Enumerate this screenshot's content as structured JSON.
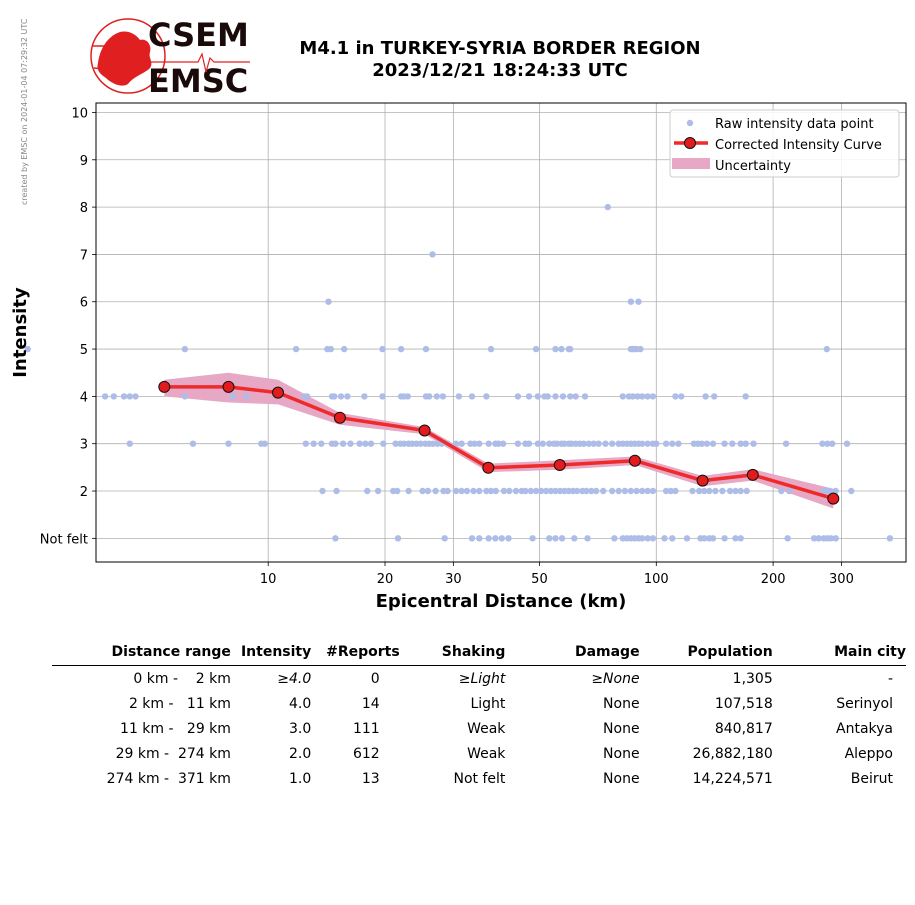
{
  "side_note": "created by EMSC on 2024-01-04 07:29:32 UTC",
  "logo": {
    "line1": "CSEM",
    "line2": "EMSC"
  },
  "title": {
    "line1": "M4.1 in TURKEY-SYRIA BORDER REGION",
    "line2": "2023/12/21 18:24:33 UTC"
  },
  "colors": {
    "raw": "#aebde8",
    "curve": "#ee2a2a",
    "marker": "#e21c1c",
    "uncertainty": "#e6a8c4",
    "grid": "#b0b0b0"
  },
  "chart_data": {
    "type": "scatter",
    "xlabel": "Epicentral Distance (km)",
    "ylabel": "Intensity",
    "xscale": "log",
    "xlim": [
      3.6,
      440
    ],
    "ylim": [
      0.5,
      10.2
    ],
    "xticks": [
      10,
      20,
      30,
      50,
      100,
      200,
      300
    ],
    "xtick_labels": [
      "10",
      "20",
      "30",
      "50",
      "100",
      "200",
      "300"
    ],
    "yticks": [
      1,
      2,
      3,
      4,
      5,
      6,
      7,
      8,
      9,
      10
    ],
    "ytick_labels": [
      "Not felt",
      "2",
      "3",
      "4",
      "5",
      "6",
      "7",
      "8",
      "9",
      "10"
    ],
    "grid": true,
    "legend_position": "top-right",
    "legend": [
      "Raw intensity data point",
      "Corrected Intensity Curve",
      "Uncertainty"
    ],
    "raw_points": [
      {
        "intensity": 5,
        "x": [
          2.4,
          6.1,
          11.8,
          14.2,
          14.5,
          15.7,
          19.7,
          22,
          25.5,
          37.5,
          49,
          55,
          57,
          59.5,
          60,
          86,
          87,
          88,
          89,
          91,
          275
        ]
      },
      {
        "intensity": 6,
        "x": [
          14.3,
          86,
          90
        ]
      },
      {
        "intensity": 7,
        "x": [
          26.5
        ]
      },
      {
        "intensity": 8,
        "x": [
          75
        ]
      },
      {
        "intensity": 4,
        "x": [
          3.8,
          4.0,
          4.25,
          4.4,
          4.55,
          6.1,
          8.1,
          8.8,
          12.4,
          12.6,
          14.6,
          14.8,
          15.4,
          16,
          17.7,
          19.7,
          22,
          22.4,
          22.9,
          25.5,
          26,
          27.2,
          28.2,
          31,
          33.5,
          36.5,
          44,
          47,
          49.5,
          51.5,
          52.5,
          55,
          57.5,
          60,
          62,
          65.5,
          82,
          85,
          87,
          89.5,
          92,
          95,
          98,
          112,
          116,
          134,
          141,
          170
        ]
      },
      {
        "intensity": 3,
        "x": [
          4.4,
          6.4,
          7.9,
          9.6,
          9.8,
          12.5,
          13.1,
          13.7,
          14.6,
          14.9,
          15.6,
          16.3,
          17.2,
          17.8,
          18.4,
          19.8,
          21.3,
          21.9,
          22.4,
          23,
          23.5,
          24.1,
          24.7,
          25.4,
          26,
          26.6,
          27.3,
          28,
          29,
          30.5,
          31.5,
          33.2,
          34,
          35,
          37,
          38.5,
          39.2,
          40.3,
          44,
          46,
          47,
          49.5,
          51,
          53,
          54.5,
          55.5,
          57,
          58,
          59.5,
          60.5,
          62,
          63.5,
          65,
          67,
          69,
          71,
          74,
          77,
          80,
          82,
          84,
          86,
          88,
          90,
          92,
          95,
          98,
          100,
          106,
          110,
          114,
          125,
          128,
          131,
          135,
          140,
          150,
          157,
          165,
          170,
          178,
          216,
          268,
          276,
          284,
          310
        ]
      },
      {
        "intensity": 2,
        "x": [
          13.8,
          15,
          18,
          19.2,
          21,
          21.5,
          23,
          25,
          25.8,
          27,
          28.3,
          29,
          30.5,
          31.5,
          32.5,
          33.8,
          35,
          36.5,
          37.5,
          38.6,
          40.5,
          41.8,
          43.5,
          45,
          46,
          47.5,
          49,
          50.5,
          52,
          53.5,
          55,
          56.5,
          58,
          59.5,
          61,
          62.5,
          64.5,
          66,
          68,
          70,
          73,
          77,
          80,
          83,
          86,
          89,
          92,
          95,
          98,
          106,
          109,
          112,
          124,
          129,
          133,
          137,
          142,
          148,
          155,
          160,
          165,
          171,
          210,
          220,
          270,
          275,
          280,
          290,
          318
        ]
      },
      {
        "intensity": 1,
        "x": [
          14.9,
          21.6,
          28.5,
          33.5,
          35,
          37,
          38.5,
          40,
          41.6,
          48,
          53,
          55,
          57.2,
          61.5,
          66.5,
          78,
          82,
          84,
          86,
          88,
          90,
          92,
          95,
          98,
          105,
          110,
          120,
          130,
          133,
          137,
          140,
          150,
          160,
          165,
          218,
          255,
          262,
          270,
          276,
          282,
          290,
          400
        ]
      }
    ],
    "series": [
      {
        "name": "Corrected Intensity Curve",
        "x": [
          5.4,
          7.9,
          10.6,
          15.3,
          25.3,
          36.9,
          56.4,
          88.1,
          131.6,
          177.3,
          285.8
        ],
        "y": [
          4.2,
          4.2,
          4.08,
          3.55,
          3.28,
          2.49,
          2.55,
          2.64,
          2.22,
          2.34,
          1.84
        ],
        "lower": [
          4.0,
          3.87,
          3.83,
          3.4,
          3.2,
          2.4,
          2.45,
          2.55,
          2.1,
          2.22,
          1.63
        ],
        "upper": [
          4.35,
          4.5,
          4.35,
          3.65,
          3.35,
          2.58,
          2.65,
          2.73,
          2.32,
          2.46,
          2.05
        ]
      }
    ]
  },
  "table": {
    "headers": [
      "Distance range",
      "Intensity",
      "#Reports",
      "Shaking",
      "Damage",
      "Population",
      "Main city"
    ],
    "rows": [
      [
        "0 km -    2 km",
        "≥4.0",
        "0",
        "≥Light",
        "≥None",
        "1,305",
        "-"
      ],
      [
        "2 km -   11 km",
        "4.0",
        "14",
        "Light",
        "None",
        "107,518",
        "Serinyol"
      ],
      [
        "11 km -   29 km",
        "3.0",
        "111",
        "Weak",
        "None",
        "840,817",
        "Antakya"
      ],
      [
        "29 km -  274 km",
        "2.0",
        "612",
        "Weak",
        "None",
        "26,882,180",
        "Aleppo"
      ],
      [
        "274 km -  371 km",
        "1.0",
        "13",
        "Not felt",
        "None",
        "14,224,571",
        "Beirut"
      ]
    ]
  }
}
